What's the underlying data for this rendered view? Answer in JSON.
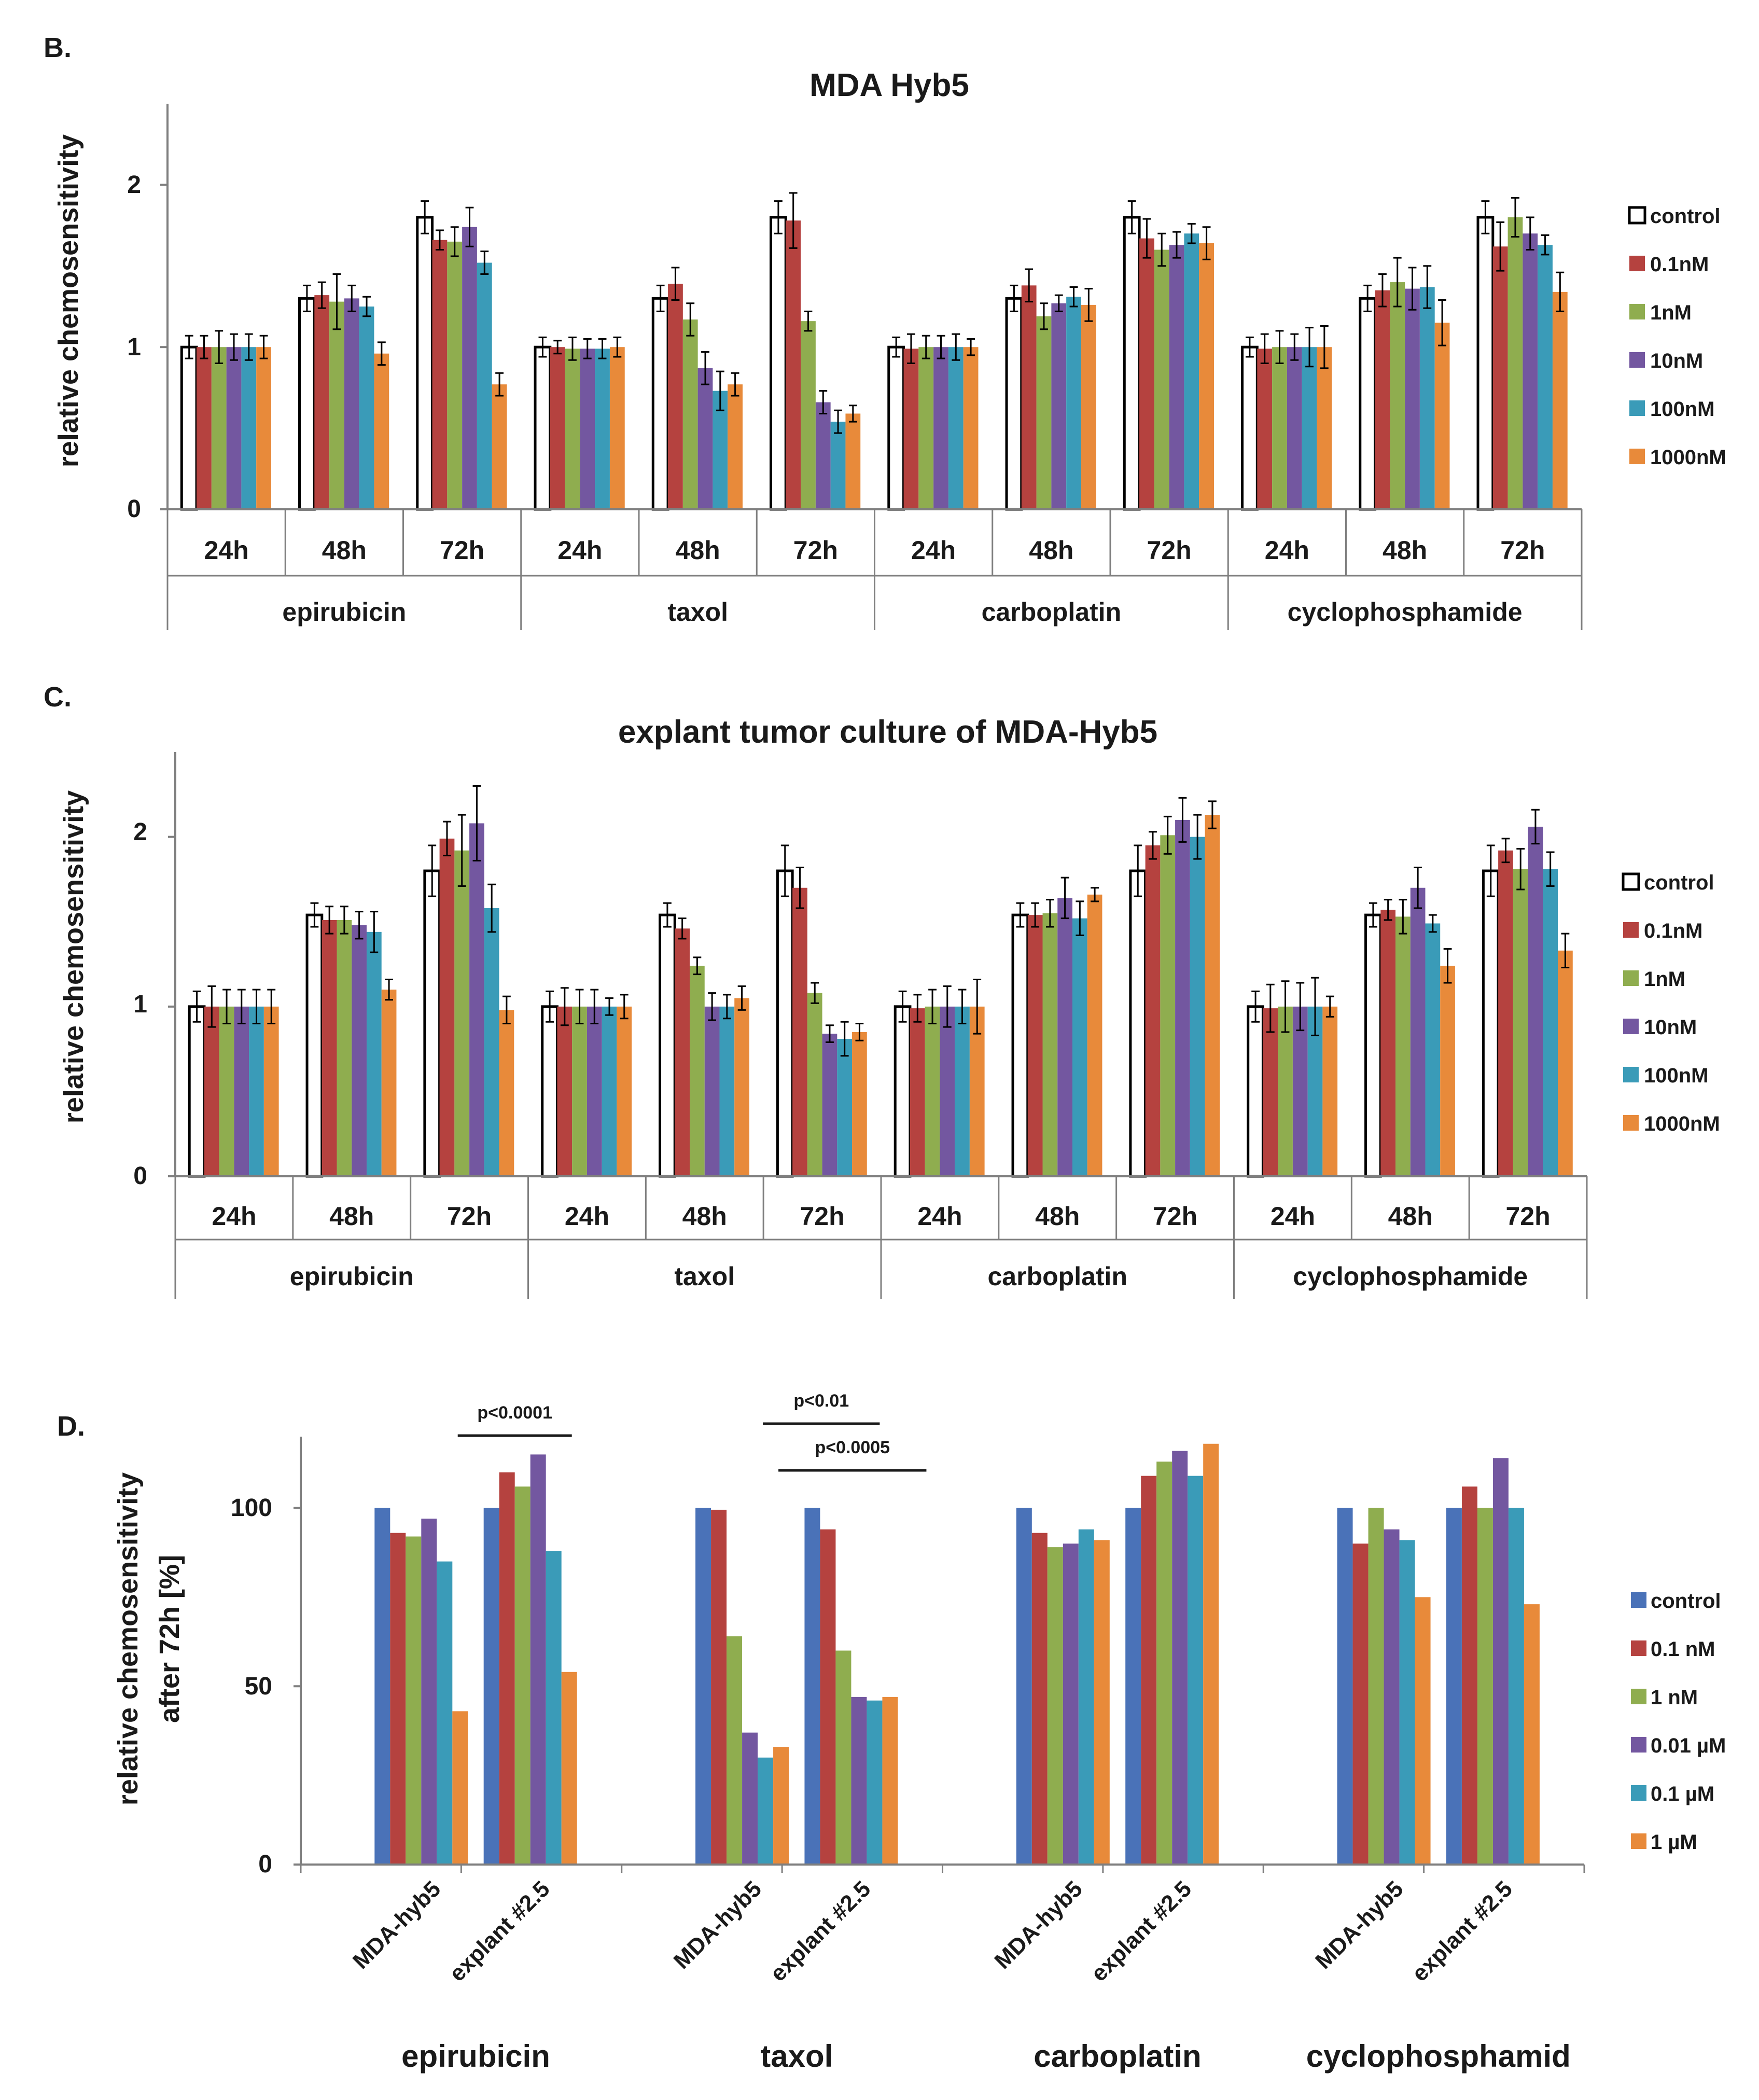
{
  "colors": {
    "control_white": "#ffffff",
    "control_blue": "#4a72b8",
    "s0_1": "#b5423f",
    "s1": "#8fad4f",
    "s10": "#7357a0",
    "s100": "#3a9bb8",
    "s1000": "#e88a3a",
    "axis": "#7f7f7f"
  },
  "chart_data": [
    {
      "id": "B",
      "panel_label": "B.",
      "type": "bar",
      "title": "MDA Hyb5",
      "ylabel": "relative chemosensitivity",
      "ylim": [
        0,
        2.5
      ],
      "yticks": [
        "0",
        "1",
        "2"
      ],
      "categories": [
        "24h",
        "48h",
        "72h",
        "24h",
        "48h",
        "72h",
        "24h",
        "48h",
        "72h",
        "24h",
        "48h",
        "72h"
      ],
      "groups": [
        "epirubicin",
        "taxol",
        "carboplatin",
        "cyclophosphamide"
      ],
      "series": [
        {
          "name": "control",
          "values": [
            1.0,
            1.3,
            1.8,
            1.0,
            1.3,
            1.8,
            1.0,
            1.3,
            1.8,
            1.0,
            1.3,
            1.8
          ],
          "errors": [
            0.07,
            0.08,
            0.1,
            0.06,
            0.08,
            0.1,
            0.06,
            0.08,
            0.1,
            0.06,
            0.08,
            0.1
          ]
        },
        {
          "name": "0.1nM",
          "values": [
            1.0,
            1.32,
            1.66,
            1.0,
            1.39,
            1.78,
            0.99,
            1.38,
            1.67,
            0.99,
            1.35,
            1.62
          ],
          "errors": [
            0.07,
            0.08,
            0.06,
            0.04,
            0.1,
            0.17,
            0.09,
            0.1,
            0.12,
            0.09,
            0.1,
            0.15
          ]
        },
        {
          "name": "1nM",
          "values": [
            1.0,
            1.28,
            1.65,
            0.99,
            1.17,
            1.16,
            1.0,
            1.19,
            1.6,
            1.0,
            1.4,
            1.8
          ],
          "errors": [
            0.1,
            0.17,
            0.09,
            0.07,
            0.1,
            0.06,
            0.07,
            0.08,
            0.1,
            0.1,
            0.15,
            0.12
          ]
        },
        {
          "name": "10nM",
          "values": [
            1.0,
            1.3,
            1.74,
            0.99,
            0.87,
            0.66,
            1.0,
            1.27,
            1.63,
            1.0,
            1.36,
            1.7
          ],
          "errors": [
            0.08,
            0.08,
            0.12,
            0.06,
            0.1,
            0.07,
            0.07,
            0.05,
            0.08,
            0.08,
            0.13,
            0.1
          ]
        },
        {
          "name": "100nM",
          "values": [
            1.0,
            1.25,
            1.52,
            0.99,
            0.73,
            0.54,
            1.0,
            1.31,
            1.7,
            1.0,
            1.37,
            1.63
          ],
          "errors": [
            0.08,
            0.06,
            0.07,
            0.06,
            0.12,
            0.07,
            0.08,
            0.06,
            0.06,
            0.12,
            0.13,
            0.06
          ]
        },
        {
          "name": "1000nM",
          "values": [
            1.0,
            0.96,
            0.77,
            1.0,
            0.77,
            0.59,
            1.0,
            1.26,
            1.64,
            1.0,
            1.15,
            1.34
          ],
          "errors": [
            0.07,
            0.07,
            0.07,
            0.06,
            0.07,
            0.05,
            0.05,
            0.1,
            0.1,
            0.13,
            0.14,
            0.12
          ]
        }
      ]
    },
    {
      "id": "C",
      "panel_label": "C.",
      "type": "bar",
      "title": "explant tumor culture of MDA-Hyb5",
      "ylabel": "relative chemosensitivity",
      "ylim": [
        0,
        2.5
      ],
      "yticks": [
        "0",
        "1",
        "2"
      ],
      "categories": [
        "24h",
        "48h",
        "72h",
        "24h",
        "48h",
        "72h",
        "24h",
        "48h",
        "72h",
        "24h",
        "48h",
        "72h"
      ],
      "groups": [
        "epirubicin",
        "taxol",
        "carboplatin",
        "cyclophosphamide"
      ],
      "series": [
        {
          "name": "control",
          "values": [
            1.0,
            1.54,
            1.8,
            1.0,
            1.54,
            1.8,
            1.0,
            1.54,
            1.8,
            1.0,
            1.54,
            1.8
          ],
          "errors": [
            0.09,
            0.07,
            0.15,
            0.09,
            0.07,
            0.15,
            0.09,
            0.07,
            0.15,
            0.09,
            0.07,
            0.15
          ]
        },
        {
          "name": "0.1nM",
          "values": [
            1.0,
            1.51,
            1.99,
            1.0,
            1.46,
            1.7,
            0.99,
            1.54,
            1.95,
            0.99,
            1.57,
            1.92
          ],
          "errors": [
            0.12,
            0.08,
            0.1,
            0.11,
            0.06,
            0.12,
            0.08,
            0.07,
            0.08,
            0.14,
            0.06,
            0.07
          ]
        },
        {
          "name": "1nM",
          "values": [
            1.0,
            1.51,
            1.92,
            1.0,
            1.24,
            1.08,
            1.0,
            1.55,
            2.01,
            1.0,
            1.53,
            1.81
          ],
          "errors": [
            0.1,
            0.08,
            0.21,
            0.1,
            0.05,
            0.06,
            0.1,
            0.08,
            0.11,
            0.15,
            0.1,
            0.12
          ]
        },
        {
          "name": "10nM",
          "values": [
            1.0,
            1.48,
            2.08,
            1.0,
            1.0,
            0.84,
            1.0,
            1.64,
            2.1,
            1.0,
            1.7,
            2.06
          ],
          "errors": [
            0.1,
            0.08,
            0.22,
            0.1,
            0.08,
            0.05,
            0.12,
            0.12,
            0.13,
            0.14,
            0.12,
            0.1
          ]
        },
        {
          "name": "100nM",
          "values": [
            1.0,
            1.44,
            1.58,
            1.0,
            1.0,
            0.81,
            1.0,
            1.52,
            2.0,
            1.0,
            1.49,
            1.81
          ],
          "errors": [
            0.1,
            0.12,
            0.14,
            0.05,
            0.07,
            0.1,
            0.1,
            0.1,
            0.13,
            0.17,
            0.05,
            0.1
          ]
        },
        {
          "name": "1000nM",
          "values": [
            1.0,
            1.1,
            0.98,
            1.0,
            1.05,
            0.85,
            1.0,
            1.66,
            2.13,
            1.0,
            1.24,
            1.33
          ],
          "errors": [
            0.1,
            0.06,
            0.08,
            0.07,
            0.07,
            0.05,
            0.16,
            0.04,
            0.08,
            0.06,
            0.1,
            0.1
          ]
        }
      ]
    },
    {
      "id": "D",
      "panel_label": "D.",
      "type": "bar",
      "title": "",
      "ylabel_lines": [
        "relative chemosensitivity",
        "after 72h  [%]"
      ],
      "ylim": [
        0,
        120
      ],
      "yticks": [
        "0",
        "50",
        "100"
      ],
      "categories": [
        "MDA-hyb5",
        "explant #2.5",
        "MDA-hyb5",
        "explant #2.5",
        "MDA-hyb5",
        "explant #2.5",
        "MDA-hyb5",
        "explant #2.5"
      ],
      "groups": [
        "epirubicin",
        "taxol",
        "carboplatin",
        "cyclophosphamid"
      ],
      "series": [
        {
          "name": "control",
          "values": [
            100,
            100,
            100,
            100,
            100,
            100,
            100,
            100
          ]
        },
        {
          "name": "0.1 nM",
          "values": [
            93,
            110,
            99.5,
            94,
            93,
            109,
            90,
            106
          ]
        },
        {
          "name": "1 nM",
          "values": [
            92,
            106,
            64,
            60,
            89,
            113,
            100,
            100
          ]
        },
        {
          "name": "0.01 µM",
          "values": [
            97,
            115,
            37,
            47,
            90,
            116,
            94,
            114
          ]
        },
        {
          "name": "0.1 µM",
          "values": [
            85,
            88,
            30,
            46,
            94,
            109,
            91,
            100
          ]
        },
        {
          "name": "1 µM",
          "values": [
            43,
            54,
            33,
            47,
            91,
            118,
            75,
            73
          ]
        }
      ],
      "annotations": [
        {
          "text": "p<0.0001",
          "from_category": 1,
          "to_category": 1
        },
        {
          "text": "p<0.01",
          "from_category": 2,
          "to_category": 3
        },
        {
          "text": "p<0.0005",
          "from_category": 3,
          "to_category": 3
        }
      ]
    }
  ]
}
